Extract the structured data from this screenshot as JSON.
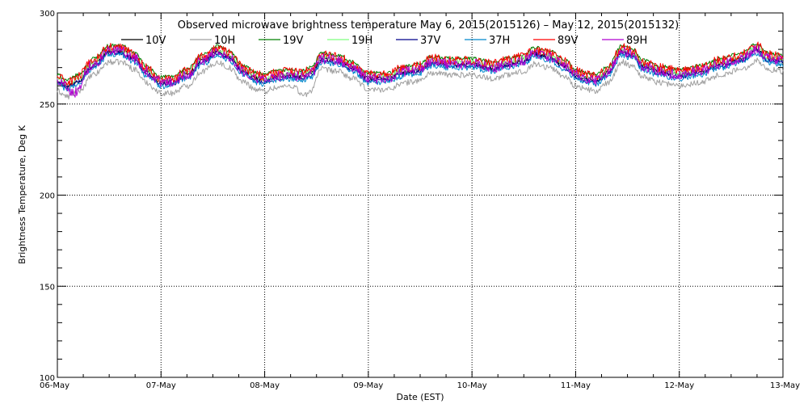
{
  "chart_data": {
    "type": "line",
    "title": "Observed microwave brightness temperature May  6, 2015(2015126) – May 12, 2015(2015132)",
    "xlabel": "Date (EST)",
    "ylabel": "Brightness Temperature, Deg K",
    "ylim": [
      100,
      300
    ],
    "xlim": [
      0,
      7
    ],
    "y_ticks": [
      100,
      150,
      200,
      250,
      300
    ],
    "x_ticks": [
      {
        "x": 0,
        "label": "06-May"
      },
      {
        "x": 1,
        "label": "07-May"
      },
      {
        "x": 2,
        "label": "08-May"
      },
      {
        "x": 3,
        "label": "09-May"
      },
      {
        "x": 4,
        "label": "10-May"
      },
      {
        "x": 5,
        "label": "11-May"
      },
      {
        "x": 6,
        "label": "12-May"
      },
      {
        "x": 7,
        "label": "13-May"
      }
    ],
    "grid": "dotted, at labeled ticks",
    "legend_placement": "top",
    "x_unit": "days after 06-May 00:00 EST",
    "base_profile": {
      "x": [
        0,
        0.1,
        0.2,
        0.35,
        0.5,
        0.62,
        0.75,
        0.85,
        1.0,
        1.1,
        1.25,
        1.4,
        1.55,
        1.65,
        1.8,
        1.92,
        2.0,
        2.1,
        2.25,
        2.35,
        2.45,
        2.55,
        2.7,
        2.85,
        3.0,
        3.1,
        3.2,
        3.3,
        3.4,
        3.5,
        3.6,
        3.8,
        4.0,
        4.2,
        4.35,
        4.5,
        4.6,
        4.75,
        4.9,
        5.0,
        5.1,
        5.2,
        5.3,
        5.45,
        5.55,
        5.65,
        5.8,
        6.0,
        6.2,
        6.4,
        6.6,
        6.75,
        6.85,
        7.0
      ],
      "y": [
        263,
        260,
        263,
        272,
        279,
        279,
        275,
        268,
        262,
        262,
        266,
        274,
        279,
        276,
        268,
        264,
        263,
        265,
        266,
        265,
        267,
        275,
        274,
        270,
        264,
        264,
        264,
        267,
        268,
        269,
        273,
        272,
        272,
        270,
        272,
        274,
        278,
        276,
        271,
        266,
        264,
        263,
        267,
        279,
        277,
        271,
        268,
        266,
        268,
        272,
        275,
        280,
        275,
        274
      ]
    },
    "series": [
      {
        "name": "10V",
        "color": "#000000",
        "offset": 0,
        "noise": 1.2
      },
      {
        "name": "10H",
        "color": "#a0a0a0",
        "offset": -6,
        "noise": 1.6
      },
      {
        "name": "19V",
        "color": "#008000",
        "offset": 3,
        "noise": 1.0
      },
      {
        "name": "19H",
        "color": "#7fff7f",
        "offset": 1,
        "noise": 1.4
      },
      {
        "name": "37V",
        "color": "#00008b",
        "offset": -1,
        "noise": 1.2
      },
      {
        "name": "37H",
        "color": "#0088cc",
        "offset": -2,
        "noise": 1.6
      },
      {
        "name": "89V",
        "color": "#ff0000",
        "offset": 2,
        "noise": 2.6
      },
      {
        "name": "89H",
        "color": "#b000d0",
        "offset": 0,
        "noise": 2.8
      }
    ]
  }
}
